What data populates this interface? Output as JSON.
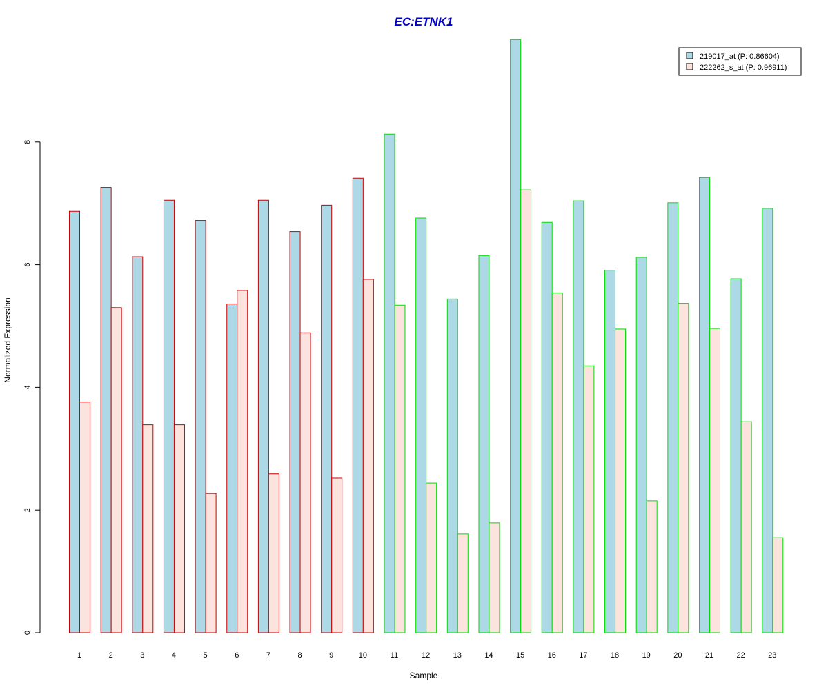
{
  "chart_data": {
    "type": "bar",
    "title": "EC:ETNK1",
    "xlabel": "Sample",
    "ylabel": "Normalized Expression",
    "ylim": [
      0,
      9.7
    ],
    "yticks": [
      0,
      2,
      4,
      6,
      8
    ],
    "grid": false,
    "legend_position": "top-right",
    "categories": [
      "1",
      "2",
      "3",
      "4",
      "5",
      "6",
      "7",
      "8",
      "9",
      "10",
      "11",
      "12",
      "13",
      "14",
      "15",
      "16",
      "17",
      "18",
      "19",
      "20",
      "21",
      "22",
      "23"
    ],
    "groups": [
      {
        "samples": [
          1,
          2,
          3,
          4,
          5,
          6,
          7,
          8,
          9,
          10
        ],
        "border_color": "#cc0000"
      },
      {
        "samples": [
          11,
          12,
          13,
          14,
          15,
          16,
          17,
          18,
          19,
          20,
          21,
          22,
          23
        ],
        "border_color": "#00dd00"
      }
    ],
    "series": [
      {
        "name": "219017_at (P: 0.86604)",
        "fill": "#add8e6",
        "values": [
          6.87,
          7.26,
          6.13,
          7.05,
          6.72,
          5.36,
          7.05,
          6.54,
          6.97,
          7.41,
          8.13,
          6.76,
          5.44,
          6.15,
          9.67,
          6.69,
          7.04,
          5.91,
          6.12,
          7.01,
          7.42,
          5.77,
          6.92
        ]
      },
      {
        "name": "222262_s_at (P: 0.96911)",
        "fill": "#fde3de",
        "values": [
          3.76,
          5.3,
          3.39,
          3.39,
          2.27,
          5.58,
          2.59,
          4.89,
          2.52,
          5.76,
          5.34,
          2.44,
          1.61,
          1.79,
          7.22,
          5.54,
          4.35,
          4.95,
          2.15,
          5.37,
          4.96,
          3.44,
          1.55
        ]
      }
    ]
  },
  "colors": {
    "title": "#0000cc",
    "axis": "#000000",
    "background": "#ffffff"
  }
}
